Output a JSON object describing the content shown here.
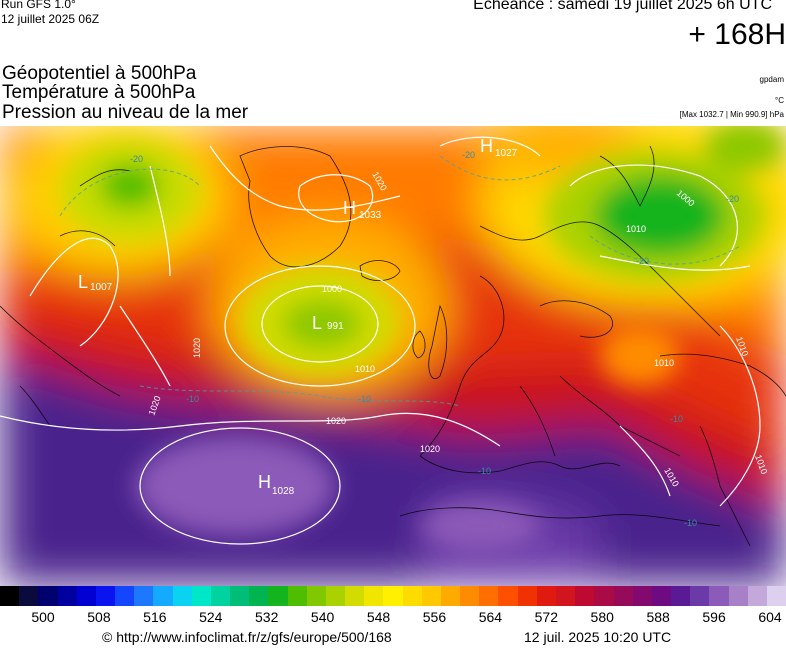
{
  "header": {
    "run": "Run GFS 1.0°",
    "run_date": "12 juillet 2025 06Z",
    "valid": "Echéance : samedi 19 juillet 2025 6h UTC",
    "lead": "+ 168H"
  },
  "params": [
    {
      "label": "Géopotentiel à 500hPa",
      "unit": "gpdam"
    },
    {
      "label": "Température à 500hPa",
      "unit": "°C"
    },
    {
      "label": "Pression au niveau de la mer",
      "unit": "[Max 1032.7 | Min 990.9] hPa"
    }
  ],
  "map": {
    "pressure_centers": [
      {
        "type": "H",
        "value": "1028"
      },
      {
        "type": "H",
        "value": "1033"
      },
      {
        "type": "H",
        "value": "1027"
      },
      {
        "type": "L",
        "value": "991"
      },
      {
        "type": "L",
        "value": "1007"
      }
    ],
    "isobar_labels": [
      "1000",
      "1010",
      "1020",
      "1020",
      "1020",
      "1020",
      "1010",
      "1010",
      "1010",
      "1010",
      "1020",
      "1000",
      "1010"
    ],
    "temperature_labels": [
      "-20",
      "-20",
      "-20",
      "-20",
      "-10",
      "-10",
      "-10",
      "-10",
      "-10"
    ],
    "colors": {
      "ocean_high": "#5d2a9e",
      "ridge": "#e01a10",
      "trough": "#2db32d"
    }
  },
  "legend": {
    "ticks": [
      "500",
      "508",
      "516",
      "524",
      "532",
      "540",
      "548",
      "556",
      "564",
      "572",
      "580",
      "588",
      "596",
      "604"
    ],
    "colors": [
      "#000000",
      "#0a0a3c",
      "#00006e",
      "#0000a0",
      "#0000d2",
      "#0a14f0",
      "#1446ff",
      "#1e78ff",
      "#14aaff",
      "#0ad2f0",
      "#00e6c8",
      "#00d2a0",
      "#00be78",
      "#00b450",
      "#14b41e",
      "#50be00",
      "#82c800",
      "#aad200",
      "#d2dc00",
      "#f0e600",
      "#fff000",
      "#ffdc00",
      "#ffc800",
      "#ffaa00",
      "#ff8c00",
      "#ff6e00",
      "#ff5000",
      "#f03200",
      "#e01a10",
      "#d2141e",
      "#be0a32",
      "#aa0a46",
      "#960a5a",
      "#820a6e",
      "#6e0a82",
      "#5a1a96",
      "#6a3aa8",
      "#8c5ab8",
      "#a880c8",
      "#c4a8dc",
      "#dcd0ee"
    ],
    "copyright": "© http://www.infoclimat.fr/z/gfs/europe/500/168",
    "generated": "12 juil. 2025 10:20 UTC"
  }
}
